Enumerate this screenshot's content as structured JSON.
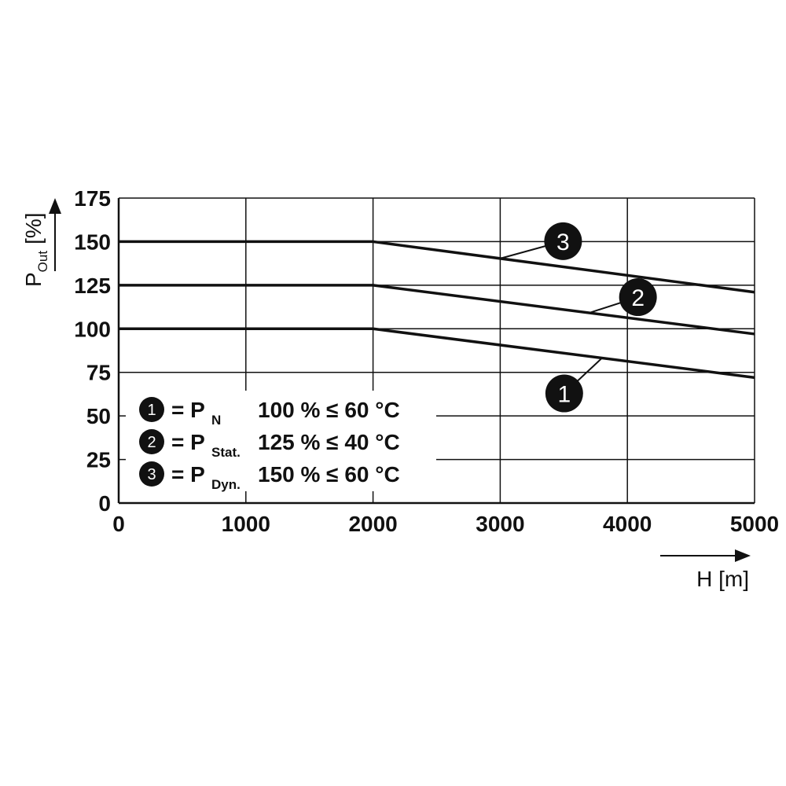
{
  "chart_data": {
    "type": "line",
    "xlabel": "H [m]",
    "ylabel_main": "P",
    "ylabel_sub": "Out",
    "ylabel_unit": "[%]",
    "x_ticks": [
      "0",
      "1000",
      "2000",
      "3000",
      "4000",
      "5000"
    ],
    "y_ticks": [
      "0",
      "25",
      "50",
      "75",
      "100",
      "125",
      "150",
      "175"
    ],
    "xlim": [
      0,
      5000
    ],
    "ylim": [
      0,
      175
    ],
    "grid": true,
    "series": [
      {
        "badge": "1",
        "points": [
          [
            0,
            100
          ],
          [
            2000,
            100
          ],
          [
            5000,
            72
          ]
        ]
      },
      {
        "badge": "2",
        "points": [
          [
            0,
            125
          ],
          [
            2000,
            125
          ],
          [
            5000,
            97
          ]
        ]
      },
      {
        "badge": "3",
        "points": [
          [
            0,
            150
          ],
          [
            2000,
            150
          ],
          [
            5000,
            121
          ]
        ]
      }
    ],
    "legend": {
      "placement": "bottom-left",
      "entries": [
        {
          "badge": "1",
          "eq": "= P",
          "sub": "N",
          "rest": "100 % ≤ 60 °C"
        },
        {
          "badge": "2",
          "eq": "= P",
          "sub": "Stat.",
          "rest": "125 % ≤ 40 °C"
        },
        {
          "badge": "3",
          "eq": "= P",
          "sub": "Dyn.",
          "rest": "150 % ≤ 60 °C"
        }
      ]
    },
    "colors": {
      "line": "#111111",
      "grid": "#111111",
      "badge_fill": "#111111",
      "badge_text": "#ffffff"
    }
  }
}
